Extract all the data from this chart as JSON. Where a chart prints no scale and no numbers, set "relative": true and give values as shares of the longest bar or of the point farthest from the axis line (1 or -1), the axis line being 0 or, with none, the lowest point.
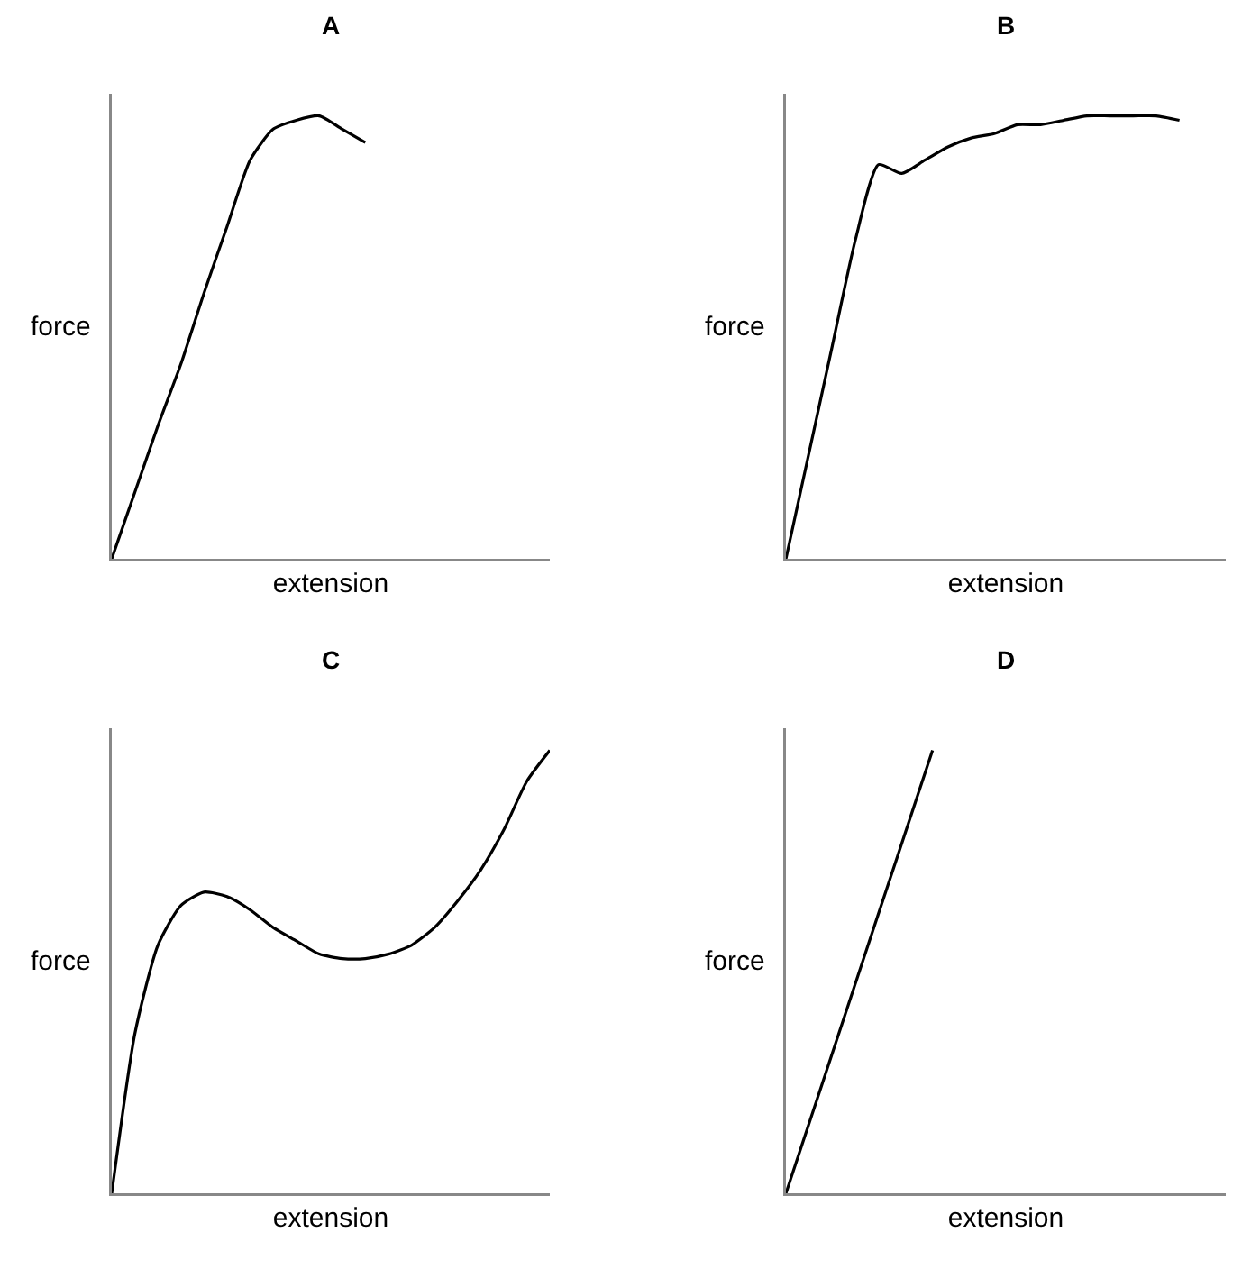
{
  "chart_data": [
    {
      "type": "line",
      "title": "A",
      "xlabel": "extension",
      "ylabel": "force",
      "relative": true,
      "color": "#000000",
      "categories": [
        null,
        null,
        null,
        null,
        null,
        null,
        null,
        null,
        null,
        null,
        null,
        null,
        null,
        null,
        null,
        null,
        null,
        null,
        null,
        null
      ],
      "values": [
        0,
        0.15,
        0.3,
        0.44,
        0.6,
        0.75,
        0.9,
        0.97,
        0.99,
        1,
        0.97,
        0.94,
        null,
        null,
        null,
        null,
        null,
        null,
        null,
        null
      ]
    },
    {
      "type": "line",
      "title": "B",
      "xlabel": "extension",
      "ylabel": "force",
      "relative": true,
      "color": "#000000",
      "categories": [
        null,
        null,
        null,
        null,
        null,
        null,
        null,
        null,
        null,
        null,
        null,
        null,
        null,
        null,
        null,
        null,
        null,
        null,
        null,
        null
      ],
      "values": [
        0,
        0.24,
        0.48,
        0.72,
        0.89,
        0.87,
        0.9,
        0.93,
        0.95,
        0.96,
        0.98,
        0.98,
        0.99,
        1,
        1,
        1,
        1,
        0.99,
        null,
        null
      ]
    },
    {
      "type": "line",
      "title": "C",
      "xlabel": "extension",
      "ylabel": "force",
      "relative": true,
      "color": "#000000",
      "categories": [
        null,
        null,
        null,
        null,
        null,
        null,
        null,
        null,
        null,
        null,
        null,
        null,
        null,
        null,
        null,
        null,
        null,
        null,
        null,
        null
      ],
      "values": [
        0,
        0.36,
        0.56,
        0.65,
        0.68,
        0.67,
        0.64,
        0.6,
        0.57,
        0.54,
        0.53,
        0.53,
        0.54,
        0.56,
        0.6,
        0.66,
        0.73,
        0.82,
        0.93,
        1
      ]
    },
    {
      "type": "line",
      "title": "D",
      "xlabel": "extension",
      "ylabel": "force",
      "relative": true,
      "color": "#000000",
      "categories": [
        null,
        null,
        null,
        null,
        null,
        null,
        null,
        null,
        null,
        null,
        null,
        null,
        null
      ],
      "values": [
        0,
        0.25,
        0.5,
        0.75,
        1,
        null,
        null,
        null,
        null,
        null,
        null,
        null,
        null
      ]
    }
  ]
}
